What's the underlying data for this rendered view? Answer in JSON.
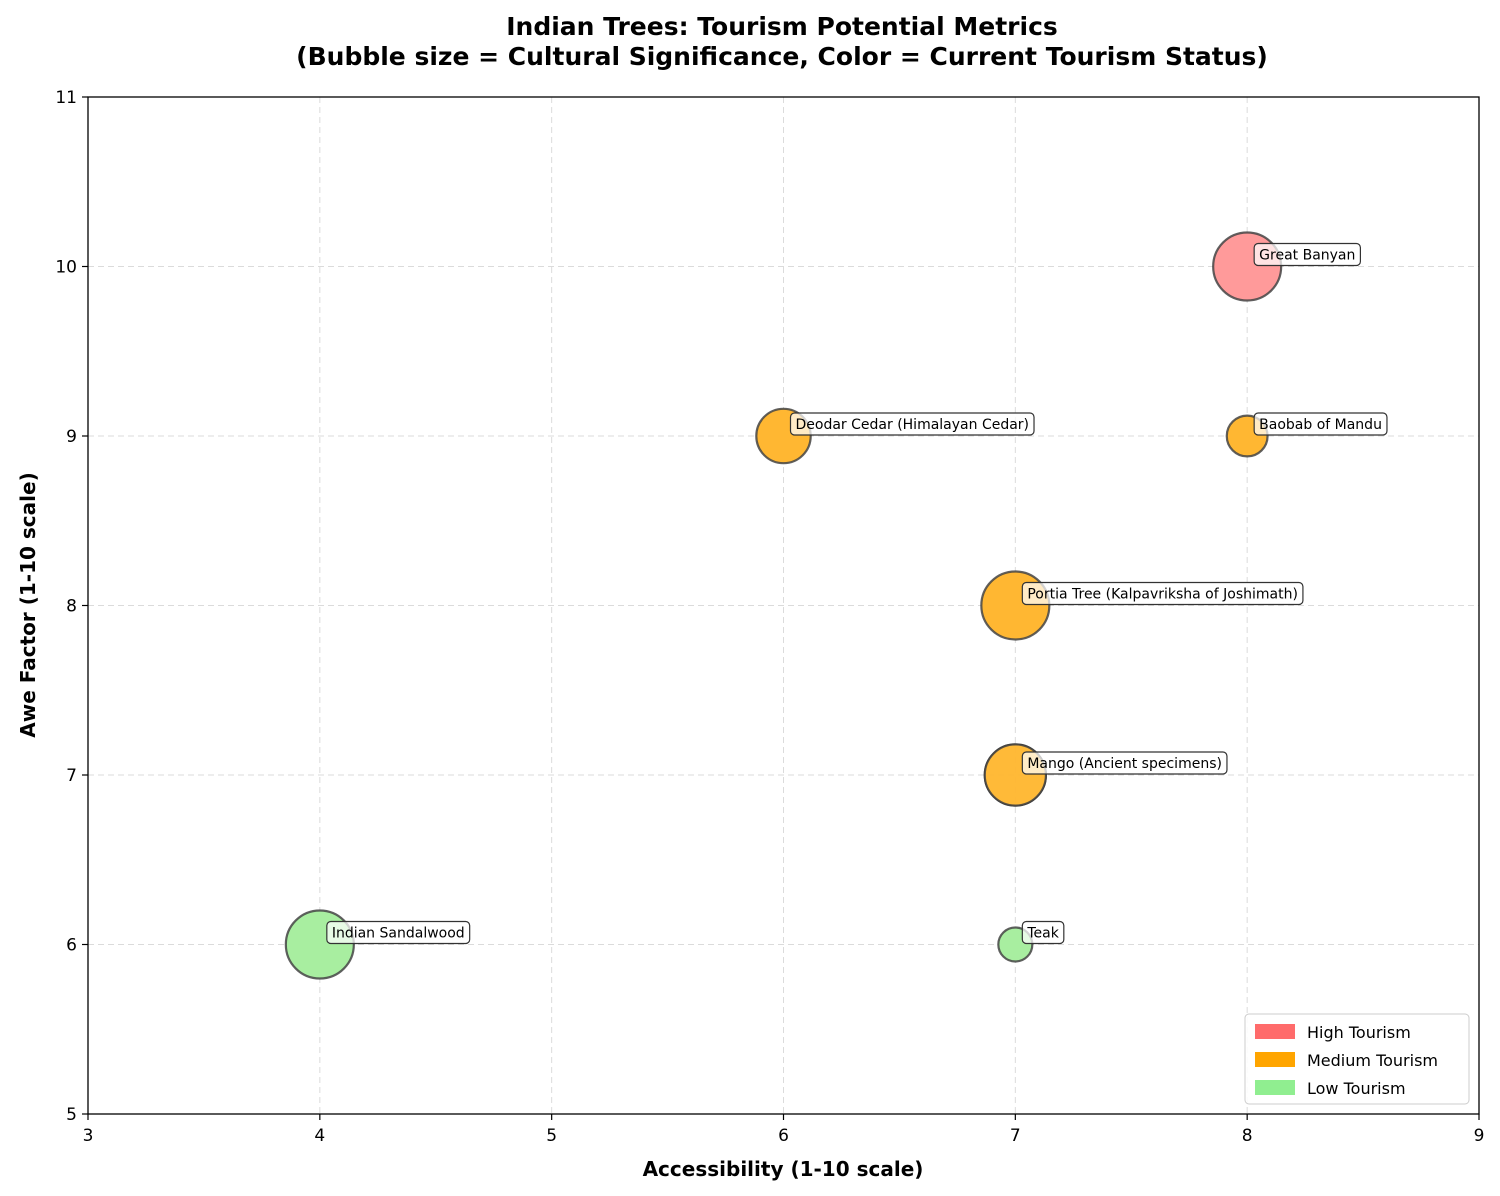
{
  "chart_data": {
    "type": "scatter",
    "title_line1": "Indian Trees: Tourism Potential Metrics",
    "title_line2": "(Bubble size = Cultural Significance, Color = Current Tourism Status)",
    "xlabel": "Accessibility (1-10 scale)",
    "ylabel": "Awe Factor (1-10 scale)",
    "xlim": [
      3,
      9
    ],
    "ylim": [
      5,
      11
    ],
    "xticks": [
      3,
      4,
      5,
      6,
      7,
      8,
      9
    ],
    "yticks": [
      5,
      6,
      7,
      8,
      9,
      10,
      11
    ],
    "grid": true,
    "legend_position": "lower-right",
    "status_colors": {
      "High": "#ff9a9a",
      "Medium": "#ffb732",
      "Low": "#a8eea0"
    },
    "legend": [
      {
        "label": "High Tourism",
        "color": "#ff6b6b"
      },
      {
        "label": "Medium Tourism",
        "color": "#ffa500"
      },
      {
        "label": "Low Tourism",
        "color": "#90ee90"
      }
    ],
    "points": [
      {
        "name": "Great Banyan",
        "x": 8,
        "y": 10,
        "significance": 10,
        "status": "High"
      },
      {
        "name": "Deodar Cedar (Himalayan Cedar)",
        "x": 6,
        "y": 9,
        "significance": 8,
        "status": "Medium"
      },
      {
        "name": "Baobab of Mandu",
        "x": 8,
        "y": 9,
        "significance": 6,
        "status": "Medium"
      },
      {
        "name": "Portia Tree (Kalpavriksha of Joshimath)",
        "x": 7,
        "y": 8,
        "significance": 10,
        "status": "Medium"
      },
      {
        "name": "Mango (Ancient specimens)",
        "x": 7,
        "y": 7,
        "significance": 9,
        "status": "Medium",
        "overlap": true
      },
      {
        "name": "Indian Sandalwood",
        "x": 4,
        "y": 6,
        "significance": 10,
        "status": "Low"
      },
      {
        "name": "Teak",
        "x": 7,
        "y": 6,
        "significance": 5,
        "status": "Low"
      }
    ]
  }
}
